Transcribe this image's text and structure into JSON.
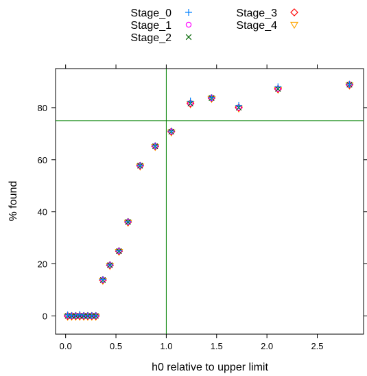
{
  "chart_data": {
    "type": "scatter",
    "xlabel": "h0 relative to upper limit",
    "ylabel": "% found",
    "xlim": [
      -0.1,
      2.96
    ],
    "ylim": [
      -7,
      95
    ],
    "xticks": [
      0.0,
      0.5,
      1.0,
      1.5,
      2.0,
      2.5
    ],
    "xtick_labels": [
      "0.0",
      "0.5",
      "1.0",
      "1.5",
      "2.0",
      "2.5"
    ],
    "yticks": [
      0,
      20,
      40,
      60,
      80
    ],
    "ytick_labels": [
      "0",
      "20",
      "40",
      "60",
      "80"
    ],
    "grid": false,
    "legend_position": "top",
    "reference_lines": {
      "vertical_x": 1.0,
      "horizontal_y": 75,
      "color": "#008000"
    },
    "series": [
      {
        "name": "Stage_0",
        "marker": "plus",
        "color": "#0080FF",
        "x": [
          0.02,
          0.06,
          0.1,
          0.14,
          0.18,
          0.22,
          0.26,
          0.3,
          0.37,
          0.44,
          0.53,
          0.62,
          0.74,
          0.89,
          1.05,
          1.24,
          1.45,
          1.72,
          2.11,
          2.82
        ],
        "y": [
          0.4,
          0.1,
          0.1,
          0.6,
          0.1,
          0.1,
          0.1,
          0.1,
          14,
          19.6,
          25,
          36.2,
          57.8,
          65.3,
          71,
          82.5,
          83.8,
          80.8,
          88,
          89
        ]
      },
      {
        "name": "Stage_1",
        "marker": "circle",
        "color": "#FF00FF",
        "x": [
          0.02,
          0.06,
          0.1,
          0.14,
          0.18,
          0.22,
          0.26,
          0.3,
          0.37,
          0.44,
          0.53,
          0.62,
          0.74,
          0.89,
          1.05,
          1.24,
          1.45,
          1.72,
          2.11,
          2.82
        ],
        "y": [
          0,
          0,
          0,
          0,
          0,
          0,
          0,
          0,
          13.8,
          19.5,
          24.9,
          36.1,
          57.7,
          65.2,
          70.8,
          81.6,
          83.7,
          80,
          87.2,
          88.8
        ]
      },
      {
        "name": "Stage_2",
        "marker": "x",
        "color": "#006400",
        "x": [
          0.02,
          0.06,
          0.1,
          0.14,
          0.18,
          0.22,
          0.26,
          0.3,
          0.37,
          0.44,
          0.53,
          0.62,
          0.74,
          0.89,
          1.05,
          1.24,
          1.45,
          1.72,
          2.11,
          2.82
        ],
        "y": [
          0,
          0,
          0,
          0,
          0,
          0,
          0,
          0,
          13.8,
          19.5,
          24.9,
          36.1,
          57.7,
          65.2,
          70.8,
          81.6,
          83.7,
          80,
          87.2,
          88.8
        ]
      },
      {
        "name": "Stage_3",
        "marker": "diamond",
        "color": "#FF0000",
        "x": [
          0.02,
          0.06,
          0.1,
          0.14,
          0.18,
          0.22,
          0.26,
          0.3,
          0.37,
          0.44,
          0.53,
          0.62,
          0.74,
          0.89,
          1.05,
          1.24,
          1.45,
          1.72,
          2.11,
          2.82
        ],
        "y": [
          0,
          0,
          0,
          0,
          0,
          0,
          0,
          0,
          13.8,
          19.5,
          24.9,
          36.1,
          57.7,
          65.2,
          70.8,
          81.6,
          83.7,
          80,
          87.2,
          88.8
        ]
      },
      {
        "name": "Stage_4",
        "marker": "triangle-down",
        "color": "#FFA500",
        "x": [
          0.02,
          0.06,
          0.1,
          0.14,
          0.18,
          0.22,
          0.26,
          0.3,
          0.37,
          0.44,
          0.53,
          0.62,
          0.74,
          0.89,
          1.05,
          1.24,
          1.45,
          1.72,
          2.11,
          2.82
        ],
        "y": [
          -0.3,
          -0.3,
          -0.3,
          -0.3,
          -0.3,
          -0.3,
          -0.3,
          -0.3,
          13.5,
          19.2,
          24.6,
          35.8,
          57.4,
          64.9,
          70.5,
          81.3,
          83.4,
          79.7,
          86.9,
          88.5
        ]
      }
    ]
  }
}
